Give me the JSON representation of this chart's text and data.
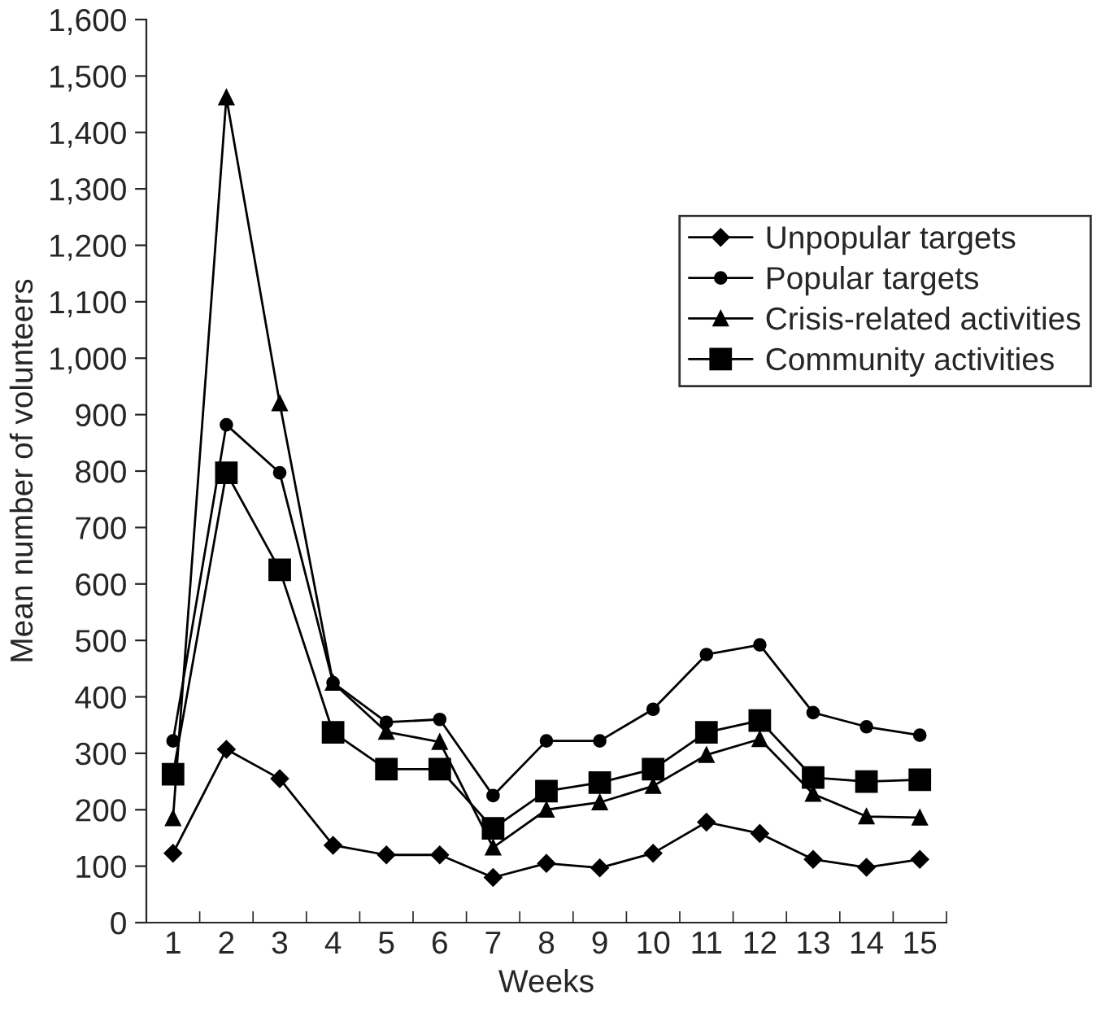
{
  "chart_data": {
    "type": "line",
    "xlabel": "Weeks",
    "ylabel": "Mean number of volunteers",
    "categories": [
      "1",
      "2",
      "3",
      "4",
      "5",
      "6",
      "7",
      "8",
      "9",
      "10",
      "11",
      "12",
      "13",
      "14",
      "15"
    ],
    "series": [
      {
        "name": "Unpopular targets",
        "color": "#000000",
        "marker": "diamond",
        "values": [
          123,
          307,
          255,
          137,
          120,
          120,
          80,
          105,
          97,
          123,
          178,
          158,
          112,
          98,
          112
        ]
      },
      {
        "name": "Popular targets",
        "color": "#000000",
        "marker": "circle",
        "values": [
          322,
          882,
          797,
          425,
          355,
          360,
          225,
          322,
          322,
          378,
          475,
          492,
          372,
          347,
          332
        ]
      },
      {
        "name": "Crisis-related activities",
        "color": "#000000",
        "marker": "triangle",
        "values": [
          185,
          1462,
          920,
          425,
          338,
          320,
          133,
          200,
          213,
          242,
          297,
          325,
          228,
          188,
          186
        ]
      },
      {
        "name": "Community activities",
        "color": "#000000",
        "marker": "square",
        "values": [
          263,
          797,
          625,
          337,
          272,
          272,
          167,
          233,
          248,
          272,
          337,
          358,
          257,
          250,
          253
        ]
      }
    ],
    "ylim": [
      0,
      1600
    ],
    "yticks": [
      0,
      {
        "value": 100,
        "label": "100"
      },
      {
        "value": 200,
        "label": "200"
      },
      {
        "value": 300,
        "label": "300"
      },
      {
        "value": 400,
        "label": "400"
      },
      {
        "value": 500,
        "label": "500"
      },
      {
        "value": 600,
        "label": "600"
      },
      {
        "value": 700,
        "label": "700"
      },
      {
        "value": 800,
        "label": "800"
      },
      {
        "value": 900,
        "label": "900"
      },
      {
        "value": 1000,
        "label": "1,000"
      },
      {
        "value": 1100,
        "label": "1,100"
      },
      {
        "value": 1200,
        "label": "1,200"
      },
      {
        "value": 1300,
        "label": "1,300"
      },
      {
        "value": 1400,
        "label": "1,400"
      },
      {
        "value": 1500,
        "label": "1,500"
      },
      {
        "value": 1600,
        "label": "1,600"
      }
    ],
    "grid": false,
    "legend": "top right",
    "line_style": "solid"
  }
}
